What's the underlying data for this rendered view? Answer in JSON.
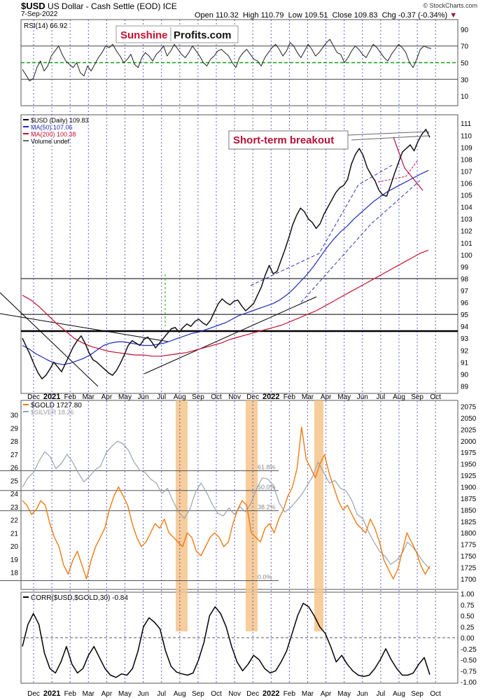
{
  "header": {
    "symbol": "$USD",
    "name": "US Dollar - Cash Settle (EOD)",
    "exchange": "ICE",
    "date": "7-Sep-2022",
    "open_label": "Open",
    "open": "110.32",
    "high_label": "High",
    "high": "110.79",
    "low_label": "Low",
    "low": "109.51",
    "close_label": "Close",
    "close": "109.83",
    "chg_label": "Chg",
    "chg": "-0.37 (-0.34%)",
    "credit": "© StockCharts.com"
  },
  "watermark": {
    "part1": "Sunshine",
    "part2": "Profits.com"
  },
  "colors": {
    "usd": "#111111",
    "ma50": "#1f2bb5",
    "ma200": "#c8102e",
    "gold": "#f07b12",
    "silver": "#9aa4ae",
    "rsi_level": "#12a012",
    "vgrid": "#2b2bd6",
    "highlight": "#f5c48a",
    "annotation": "#b5123a"
  },
  "chart_data": [
    {
      "type": "line",
      "title": "RSI(14) 66.92",
      "ylim": [
        0,
        100
      ],
      "yticks": [
        10,
        30,
        50,
        70,
        90
      ],
      "levels": [
        30,
        50,
        70
      ],
      "series": [
        {
          "name": "RSI(14)",
          "values": [
            42,
            35,
            28,
            31,
            44,
            52,
            40,
            46,
            58,
            64,
            70,
            60,
            52,
            48,
            44,
            50,
            38,
            34,
            46,
            40,
            48,
            56,
            62,
            70,
            68,
            72,
            64,
            58,
            50,
            54,
            60,
            48,
            44,
            56,
            62,
            58,
            52,
            60,
            64,
            70,
            58,
            64,
            72,
            66,
            60,
            56,
            62,
            70,
            64,
            58,
            50,
            46,
            54,
            58,
            64,
            66,
            62,
            58,
            50,
            44,
            56,
            62,
            66,
            60,
            54,
            52,
            46,
            56,
            62,
            68,
            72,
            66,
            58,
            64,
            74,
            70,
            62,
            56,
            64,
            72,
            66,
            58,
            62,
            68,
            74,
            78,
            70,
            62,
            60,
            50,
            56,
            64,
            70,
            66,
            60,
            56,
            64,
            72,
            68,
            62,
            56,
            52,
            60,
            66,
            72,
            68,
            62,
            50,
            44,
            54,
            66,
            70,
            68,
            66.92
          ]
        }
      ]
    },
    {
      "type": "line",
      "title": "$USD (Daily) 109.83",
      "ylim": [
        88.5,
        111.6
      ],
      "yticks": [
        89,
        90,
        91,
        92,
        93,
        94,
        95,
        96,
        97,
        98,
        99,
        100,
        101,
        102,
        103,
        104,
        105,
        106,
        107,
        108,
        109,
        110,
        111
      ],
      "legend": [
        "$USD (Daily) 109.83",
        "MA(50) 107.06",
        "MA(200) 100.38",
        "Volume undef"
      ],
      "horizontal_levels": [
        93.6,
        95.0,
        98.0
      ],
      "annotation": "Short-term breakout",
      "series": [
        {
          "name": "$USD",
          "values": [
            93,
            92.3,
            91.6,
            90.8,
            90.1,
            89.6,
            89.9,
            90.4,
            91.0,
            90.6,
            90.2,
            90.9,
            91.6,
            92.3,
            92.8,
            93.2,
            92.6,
            91.8,
            91.2,
            91.0,
            90.7,
            90.4,
            90.1,
            89.9,
            90.3,
            90.9,
            91.6,
            92.4,
            92.8,
            92.6,
            92.4,
            92.9,
            93.1,
            92.7,
            92.2,
            92.6,
            93.0,
            93.4,
            93.8,
            93.9,
            93.5,
            93.9,
            94.2,
            94.0,
            94.4,
            94.6,
            94.3,
            94.1,
            94.5,
            95.2,
            95.9,
            96.3,
            96.0,
            95.8,
            96.1,
            96.2,
            95.7,
            95.3,
            95.6,
            95.9,
            96.6,
            97.3,
            98.3,
            99.1,
            98.4,
            98.6,
            99.5,
            100.4,
            101.4,
            102.5,
            103.3,
            103.9,
            103.6,
            103.0,
            102.7,
            102.2,
            102.6,
            103.4,
            104.0,
            104.6,
            105.2,
            105.6,
            105.8,
            106.3,
            107.6,
            108.4,
            108.9,
            108.3,
            107.3,
            106.7,
            106.2,
            105.4,
            105.0,
            104.9,
            105.8,
            106.8,
            107.7,
            108.6,
            108.9,
            109.2,
            108.7,
            109.5,
            110.1,
            110.5,
            109.83
          ]
        },
        {
          "name": "MA(50)",
          "values": [
            92.4,
            92.1,
            91.7,
            91.4,
            91.1,
            90.9,
            90.8,
            90.9,
            91.1,
            91.3,
            91.6,
            92.0,
            92.4,
            92.6,
            92.7,
            92.7,
            92.6,
            92.5,
            92.4,
            92.4,
            92.5,
            92.6,
            92.8,
            93.0,
            93.2,
            93.4,
            93.5,
            93.7,
            93.9,
            94.1,
            94.3,
            94.6,
            94.9,
            95.1,
            95.3,
            95.5,
            95.7,
            95.9,
            96.2,
            96.6,
            97.1,
            97.7,
            98.3,
            99.0,
            99.8,
            100.6,
            101.3,
            101.9,
            102.4,
            103.0,
            103.5,
            104.0,
            104.5,
            104.9,
            105.3,
            105.6,
            105.9,
            106.2,
            106.5,
            106.8,
            107.06
          ]
        },
        {
          "name": "MA(200)",
          "values": [
            96.6,
            96.2,
            95.6,
            94.9,
            94.2,
            93.6,
            93.0,
            92.6,
            92.3,
            92.1,
            91.9,
            91.8,
            91.7,
            91.6,
            91.6,
            91.5,
            91.5,
            91.6,
            91.7,
            91.8,
            92.0,
            92.2,
            92.4,
            92.6,
            92.9,
            93.1,
            93.3,
            93.5,
            93.7,
            93.9,
            94.1,
            94.4,
            94.7,
            95.0,
            95.3,
            95.7,
            96.1,
            96.5,
            96.9,
            97.3,
            97.7,
            98.1,
            98.5,
            98.9,
            99.3,
            99.7,
            100.1,
            100.38
          ]
        }
      ],
      "x_tick_labels": [
        "Dec",
        "2021",
        "Feb",
        "Mar",
        "Apr",
        "May",
        "Jun",
        "Jul",
        "Aug",
        "Sep",
        "Oct",
        "Nov",
        "Dec",
        "2022",
        "Feb",
        "Mar",
        "Apr",
        "May",
        "Jun",
        "Jul",
        "Aug",
        "Sep",
        "Oct"
      ]
    },
    {
      "type": "line",
      "title": "$GOLD 1727.80",
      "legend": [
        "$GOLD 1727.80",
        "$SILVER 18.26"
      ],
      "ylim_right": [
        1680,
        2085
      ],
      "yticks_right": [
        1700,
        1725,
        1750,
        1775,
        1800,
        1825,
        1850,
        1875,
        1900,
        1925,
        1950,
        1975,
        2000,
        2025,
        2050,
        2075
      ],
      "ylim_left": [
        16.8,
        31
      ],
      "yticks_left": [
        18,
        19,
        20,
        21,
        22,
        23,
        24,
        25,
        26,
        27,
        28,
        29,
        30
      ],
      "fib_levels": [
        {
          "label": "61.8%",
          "value": 1935
        },
        {
          "label": "50.0%",
          "value": 1892
        },
        {
          "label": "38.2%",
          "value": 1848
        },
        {
          "label": "0.0%",
          "value": 1696
        }
      ],
      "series": [
        {
          "name": "$GOLD",
          "values": [
            1870,
            1860,
            1840,
            1850,
            1870,
            1860,
            1820,
            1790,
            1770,
            1730,
            1710,
            1740,
            1760,
            1730,
            1700,
            1740,
            1770,
            1790,
            1810,
            1850,
            1880,
            1900,
            1880,
            1860,
            1820,
            1790,
            1770,
            1780,
            1800,
            1820,
            1810,
            1830,
            1800,
            1790,
            1780,
            1770,
            1800,
            1790,
            1760,
            1750,
            1770,
            1790,
            1800,
            1790,
            1770,
            1780,
            1820,
            1850,
            1870,
            1860,
            1800,
            1790,
            1780,
            1810,
            1820,
            1800,
            1830,
            1850,
            1880,
            1900,
            1940,
            2030,
            1960,
            1940,
            1920,
            1950,
            1970,
            1930,
            1900,
            1870,
            1850,
            1860,
            1840,
            1820,
            1810,
            1800,
            1830,
            1810,
            1780,
            1740,
            1720,
            1700,
            1720,
            1760,
            1800,
            1780,
            1760,
            1730,
            1710,
            1727.8
          ]
        },
        {
          "name": "$SILVER",
          "values": [
            24.5,
            25.2,
            25.6,
            26.5,
            27.2,
            26.8,
            25.9,
            26.3,
            27.0,
            26.4,
            25.6,
            24.9,
            25.3,
            25.8,
            26.1,
            27.1,
            27.6,
            28.0,
            27.8,
            27.3,
            26.4,
            25.8,
            25.6,
            25.1,
            24.8,
            24.0,
            24.4,
            23.4,
            22.6,
            22.1,
            22.8,
            24.1,
            24.8,
            24.1,
            23.2,
            22.5,
            22.3,
            22.9,
            22.4,
            23.0,
            22.6,
            23.3,
            24.4,
            25.2,
            25.1,
            24.6,
            23.3,
            22.6,
            22.9,
            23.4,
            23.9,
            24.6,
            25.3,
            26.4,
            25.6,
            24.8,
            25.0,
            24.4,
            24.2,
            23.5,
            22.4,
            22.1,
            21.1,
            20.3,
            19.6,
            19.2,
            18.6,
            18.9,
            19.4,
            20.3,
            19.9,
            19.3,
            18.7,
            18.26
          ]
        }
      ],
      "highlight_periods": [
        "Aug 2021",
        "Nov 2021",
        "Mar 2022"
      ]
    },
    {
      "type": "line",
      "title": "CORR($USD,$GOLD,30) -0.84",
      "ylim": [
        -1.0,
        1.0
      ],
      "yticks": [
        -1.0,
        -0.75,
        -0.5,
        -0.25,
        0.0,
        0.25,
        0.5,
        0.75,
        1.0
      ],
      "yticks_labels": [
        "-1.00",
        "-0.75",
        "-0.50",
        "-0.25",
        "0.00",
        "0.25",
        "0.50",
        "0.75",
        "1.00"
      ],
      "series": [
        {
          "name": "CORR",
          "values": [
            -0.2,
            0.3,
            0.55,
            0.3,
            -0.35,
            -0.7,
            -0.8,
            -0.55,
            -0.2,
            -0.6,
            -0.8,
            -0.7,
            -0.4,
            -0.2,
            -0.45,
            -0.7,
            -0.85,
            -0.9,
            -0.82,
            -0.85,
            -0.7,
            -0.3,
            0.25,
            0.45,
            0.35,
            0.2,
            -0.3,
            -0.65,
            -0.78,
            -0.82,
            -0.85,
            -0.8,
            -0.5,
            -0.1,
            0.5,
            0.7,
            0.55,
            0.25,
            -0.2,
            -0.55,
            -0.75,
            -0.6,
            -0.4,
            -0.5,
            -0.7,
            -0.8,
            -0.75,
            -0.55,
            -0.3,
            0.1,
            0.5,
            0.78,
            0.7,
            0.5,
            0.25,
            0.1,
            -0.2,
            -0.55,
            -0.4,
            -0.6,
            -0.75,
            -0.85,
            -0.88,
            -0.85,
            -0.7,
            -0.5,
            -0.25,
            -0.5,
            -0.7,
            -0.85,
            -0.85,
            -0.8,
            -0.6,
            -0.45,
            -0.84
          ]
        }
      ],
      "x_tick_labels": [
        "Dec",
        "2021",
        "Feb",
        "Mar",
        "Apr",
        "May",
        "Jun",
        "Jul",
        "Aug",
        "Sep",
        "Oct",
        "Nov",
        "Dec",
        "2022",
        "Feb",
        "Mar",
        "Apr",
        "May",
        "Jun",
        "Jul",
        "Aug",
        "Sep",
        "Oct"
      ]
    }
  ]
}
